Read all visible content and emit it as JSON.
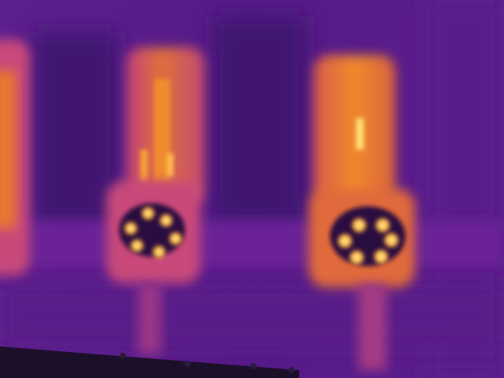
{
  "image": {
    "kind": "thermal-camera-photo",
    "palette": "ironbow",
    "palette_colors": {
      "cold_background": "#5a1d8c",
      "dark_recess": "#3e1470",
      "cool_surface": "#7a2aa0",
      "warm": "#c0407a",
      "hot": "#f08a2a",
      "hottest": "#ffd060",
      "near_black": "#1c0f2a"
    },
    "subjects": [
      {
        "name": "left-edge-housing",
        "relative_heat": "medium"
      },
      {
        "name": "center-connector-housing",
        "relative_heat": "medium",
        "pin_count": 6
      },
      {
        "name": "right-connector-housing",
        "relative_heat": "high",
        "pin_count": 6
      }
    ]
  }
}
